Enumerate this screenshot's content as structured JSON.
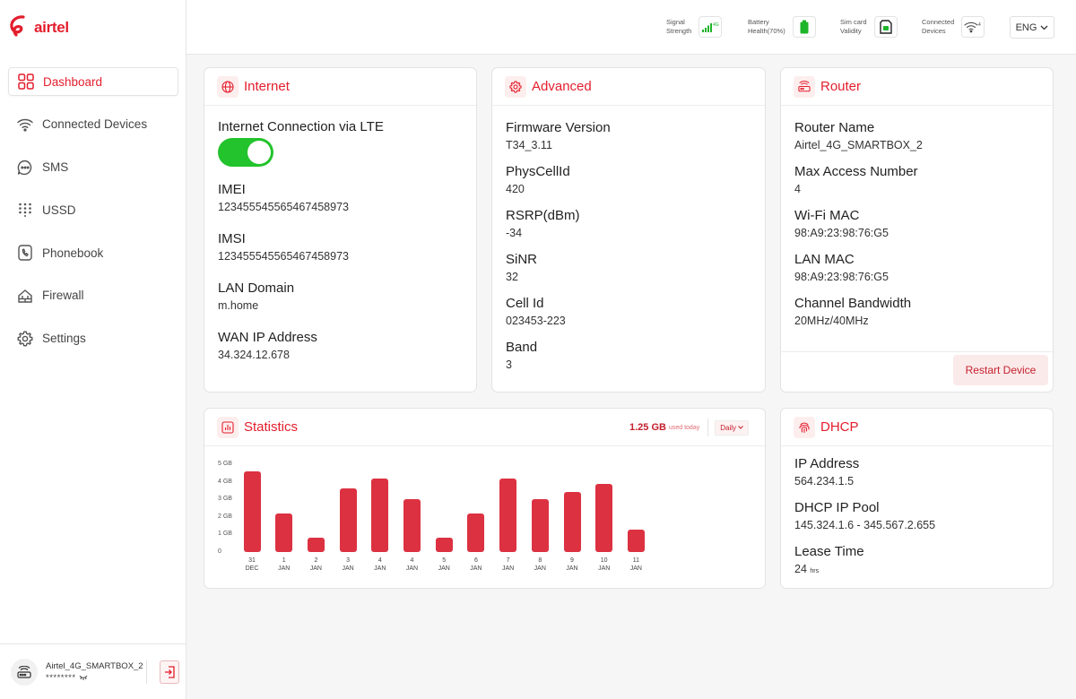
{
  "brand": {
    "name": "airtel"
  },
  "sidebar": {
    "items": [
      {
        "label": "Dashboard",
        "icon": "grid-icon"
      },
      {
        "label": "Connected Devices",
        "icon": "wifi-icon"
      },
      {
        "label": "SMS",
        "icon": "chat-icon"
      },
      {
        "label": "USSD",
        "icon": "keypad-icon"
      },
      {
        "label": "Phonebook",
        "icon": "phone-icon"
      },
      {
        "label": "Firewall",
        "icon": "firewall-icon"
      },
      {
        "label": "Settings",
        "icon": "gear-icon"
      }
    ],
    "footer": {
      "device_name": "Airtel_4G_SMARTBOX_2",
      "password_mask": "********"
    }
  },
  "topbar": {
    "signal_label_1": "Signal",
    "signal_label_2": "Strength",
    "signal_badge": "4G",
    "battery_label_1": "Battery",
    "battery_label_2": "Health(70%)",
    "sim_label_1": "Sim card",
    "sim_label_2": "Validity",
    "devices_label_1": "Connected",
    "devices_label_2": "Devices",
    "devices_count": "4",
    "language": "ENG"
  },
  "internet": {
    "title": "Internet",
    "conn_label": "Internet Connection via LTE",
    "lte_enabled": true,
    "imei_label": "IMEI",
    "imei": "123455545565467458973",
    "imsi_label": "IMSI",
    "imsi": "123455545565467458973",
    "lan_label": "LAN Domain",
    "lan": "m.home",
    "wan_label": "WAN IP Address",
    "wan": "34.324.12.678"
  },
  "advanced": {
    "title": "Advanced",
    "fields": [
      {
        "label": "Firmware Version",
        "value": "T34_3.11"
      },
      {
        "label": "PhysCellId",
        "value": "420"
      },
      {
        "label": "RSRP(dBm)",
        "value": "-34"
      },
      {
        "label": "SiNR",
        "value": "32"
      },
      {
        "label": "Cell Id",
        "value": "023453-223"
      },
      {
        "label": "Band",
        "value": "3"
      }
    ]
  },
  "router": {
    "title": "Router",
    "fields": [
      {
        "label": "Router Name",
        "value": "Airtel_4G_SMARTBOX_2"
      },
      {
        "label": "Max Access Number",
        "value": "4"
      },
      {
        "label": "Wi-Fi MAC",
        "value": "98:A9:23:98:76:G5"
      },
      {
        "label": "LAN MAC",
        "value": "98:A9:23:98:76:G5"
      },
      {
        "label": "Channel Bandwidth",
        "value": "20MHz/40MHz"
      }
    ],
    "restart_label": "Restart Device"
  },
  "statistics": {
    "title": "Statistics",
    "used_value": "1.25 GB",
    "used_label": "used today",
    "period": "Daily"
  },
  "dhcp": {
    "title": "DHCP",
    "ip_label": "IP Address",
    "ip": "564.234.1.5",
    "pool_label": "DHCP IP Pool",
    "pool": "145.324.1.6 - 345.567.2.655",
    "lease_label": "Lease Time",
    "lease_value": "24",
    "lease_unit": "hrs"
  },
  "colors": {
    "accent": "#e31e2d",
    "bar": "#dc3141",
    "toggle_on": "#22c32c"
  },
  "chart_data": {
    "type": "bar",
    "yticks": [
      "5 GB",
      "4 GB",
      "3 GB",
      "2 GB",
      "1 GB",
      "0"
    ],
    "ylim": [
      0,
      5
    ],
    "categories": [
      {
        "day": "31",
        "month": "DEC"
      },
      {
        "day": "1",
        "month": "JAN"
      },
      {
        "day": "2",
        "month": "JAN"
      },
      {
        "day": "3",
        "month": "JAN"
      },
      {
        "day": "4",
        "month": "JAN"
      },
      {
        "day": "4",
        "month": "JAN"
      },
      {
        "day": "5",
        "month": "JAN"
      },
      {
        "day": "6",
        "month": "JAN"
      },
      {
        "day": "7",
        "month": "JAN"
      },
      {
        "day": "8",
        "month": "JAN"
      },
      {
        "day": "9",
        "month": "JAN"
      },
      {
        "day": "10",
        "month": "JAN"
      },
      {
        "day": "11",
        "month": "JAN"
      }
    ],
    "values": [
      4.6,
      2.2,
      0.8,
      3.6,
      4.2,
      3.0,
      0.8,
      2.2,
      4.2,
      3.0,
      3.4,
      3.9,
      1.3
    ]
  }
}
